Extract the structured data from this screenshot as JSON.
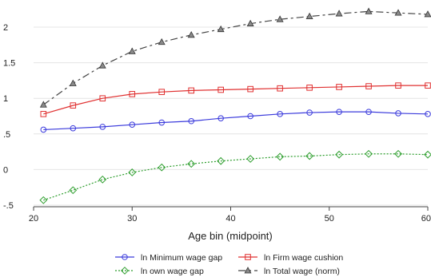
{
  "chart_data": {
    "type": "line",
    "xlabel": "Age bin (midpoint)",
    "ylabel": "",
    "xlim": [
      20,
      60
    ],
    "ylim": [
      -0.5,
      2.25
    ],
    "x_ticks": [
      20,
      30,
      40,
      50,
      60
    ],
    "x_tick_labels": [
      "20",
      "30",
      "40",
      "50",
      "60"
    ],
    "y_ticks": [
      -0.5,
      0,
      0.5,
      1,
      1.5,
      2
    ],
    "y_tick_labels": [
      "-.5",
      "0",
      ".5",
      "1",
      "1.5",
      "2"
    ],
    "grid": "horizontal",
    "legend_position": "bottom",
    "x": [
      21,
      24,
      27,
      30,
      33,
      36,
      39,
      42,
      45,
      48,
      51,
      54,
      57,
      60
    ],
    "series": [
      {
        "name": "ln Minimum wage gap",
        "color": "#3b3bdc",
        "marker": "circle",
        "dash": "solid",
        "values": [
          0.56,
          0.58,
          0.6,
          0.63,
          0.66,
          0.68,
          0.72,
          0.75,
          0.78,
          0.8,
          0.81,
          0.81,
          0.79,
          0.78
        ]
      },
      {
        "name": "ln Firm wage cushion",
        "color": "#e03030",
        "marker": "square",
        "dash": "solid",
        "values": [
          0.78,
          0.9,
          1.0,
          1.06,
          1.09,
          1.11,
          1.12,
          1.13,
          1.14,
          1.15,
          1.16,
          1.17,
          1.18,
          1.18
        ]
      },
      {
        "name": "ln own wage gap",
        "color": "#2e9e2e",
        "marker": "diamond",
        "dash": "dotted",
        "values": [
          -0.43,
          -0.29,
          -0.14,
          -0.04,
          0.03,
          0.08,
          0.12,
          0.15,
          0.18,
          0.19,
          0.21,
          0.22,
          0.22,
          0.21
        ]
      },
      {
        "name": "ln Total wage (norm)",
        "color": "#444444",
        "marker": "triangle",
        "dash": "longdash",
        "values": [
          0.91,
          1.21,
          1.46,
          1.66,
          1.79,
          1.89,
          1.97,
          2.05,
          2.11,
          2.15,
          2.19,
          2.22,
          2.2,
          2.18
        ]
      }
    ]
  }
}
